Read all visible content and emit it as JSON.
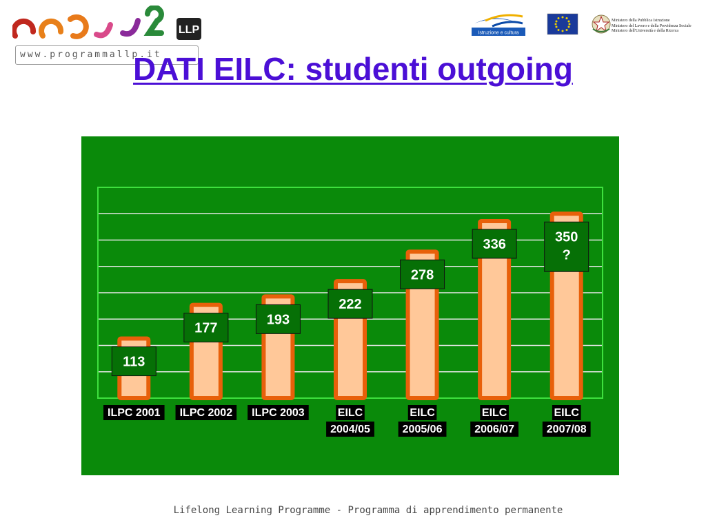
{
  "header": {
    "logo": {
      "name": "llp-programme-logo",
      "badge_text": "LLP",
      "website": "www.programmallp.it",
      "colors": [
        "#c0281e",
        "#e8801a",
        "#d94a8a",
        "#8a2a9a",
        "#4a2ab0",
        "#2a8a3a"
      ]
    },
    "partner_logos": [
      {
        "name": "istruzione-e-cultura-logo",
        "caption": "Istruzione e cultura"
      },
      {
        "name": "eu-flag-icon"
      },
      {
        "name": "italian-republic-emblem-icon"
      }
    ],
    "ministries": [
      "Ministero della Pubblica Istruzione",
      "Ministero del Lavoro e della Previdenza Sociale",
      "Ministero dell'Università e della Ricerca"
    ]
  },
  "title": "DATI EILC: studenti outgoing",
  "chart_data": {
    "type": "bar",
    "title": "",
    "xlabel": "",
    "ylabel": "",
    "categories": [
      "ILPC 2001",
      "ILPC 2002",
      "ILPC 2003",
      "EILC 2004/05",
      "EILC 2005/06",
      "EILC 2006/07",
      "EILC 2007/08"
    ],
    "category_lines": [
      [
        "ILPC 2001"
      ],
      [
        "ILPC 2002"
      ],
      [
        "ILPC 2003"
      ],
      [
        "EILC",
        "2004/05"
      ],
      [
        "EILC",
        "2005/06"
      ],
      [
        "EILC",
        "2006/07"
      ],
      [
        "EILC",
        "2007/08"
      ]
    ],
    "values": [
      113,
      177,
      193,
      222,
      278,
      336,
      350
    ],
    "data_labels": [
      [
        "113"
      ],
      [
        "177"
      ],
      [
        "193"
      ],
      [
        "222"
      ],
      [
        "278"
      ],
      [
        "336"
      ],
      [
        "350",
        "?"
      ]
    ],
    "ylim": [
      0,
      400
    ],
    "gridlines": [
      50,
      100,
      150,
      200,
      250,
      300,
      350
    ],
    "grid": true,
    "legend": "none",
    "colors": {
      "background": "#0a8a0a",
      "plot_border": "#3ee03e",
      "gridline": "#e8e8e8",
      "bar_fill": "#ffc899",
      "bar_outline": "#e8600a",
      "label_box": "#067006",
      "label_text": "#ffffff"
    }
  },
  "footer": "Lifelong Learning Programme - Programma di apprendimento permanente"
}
